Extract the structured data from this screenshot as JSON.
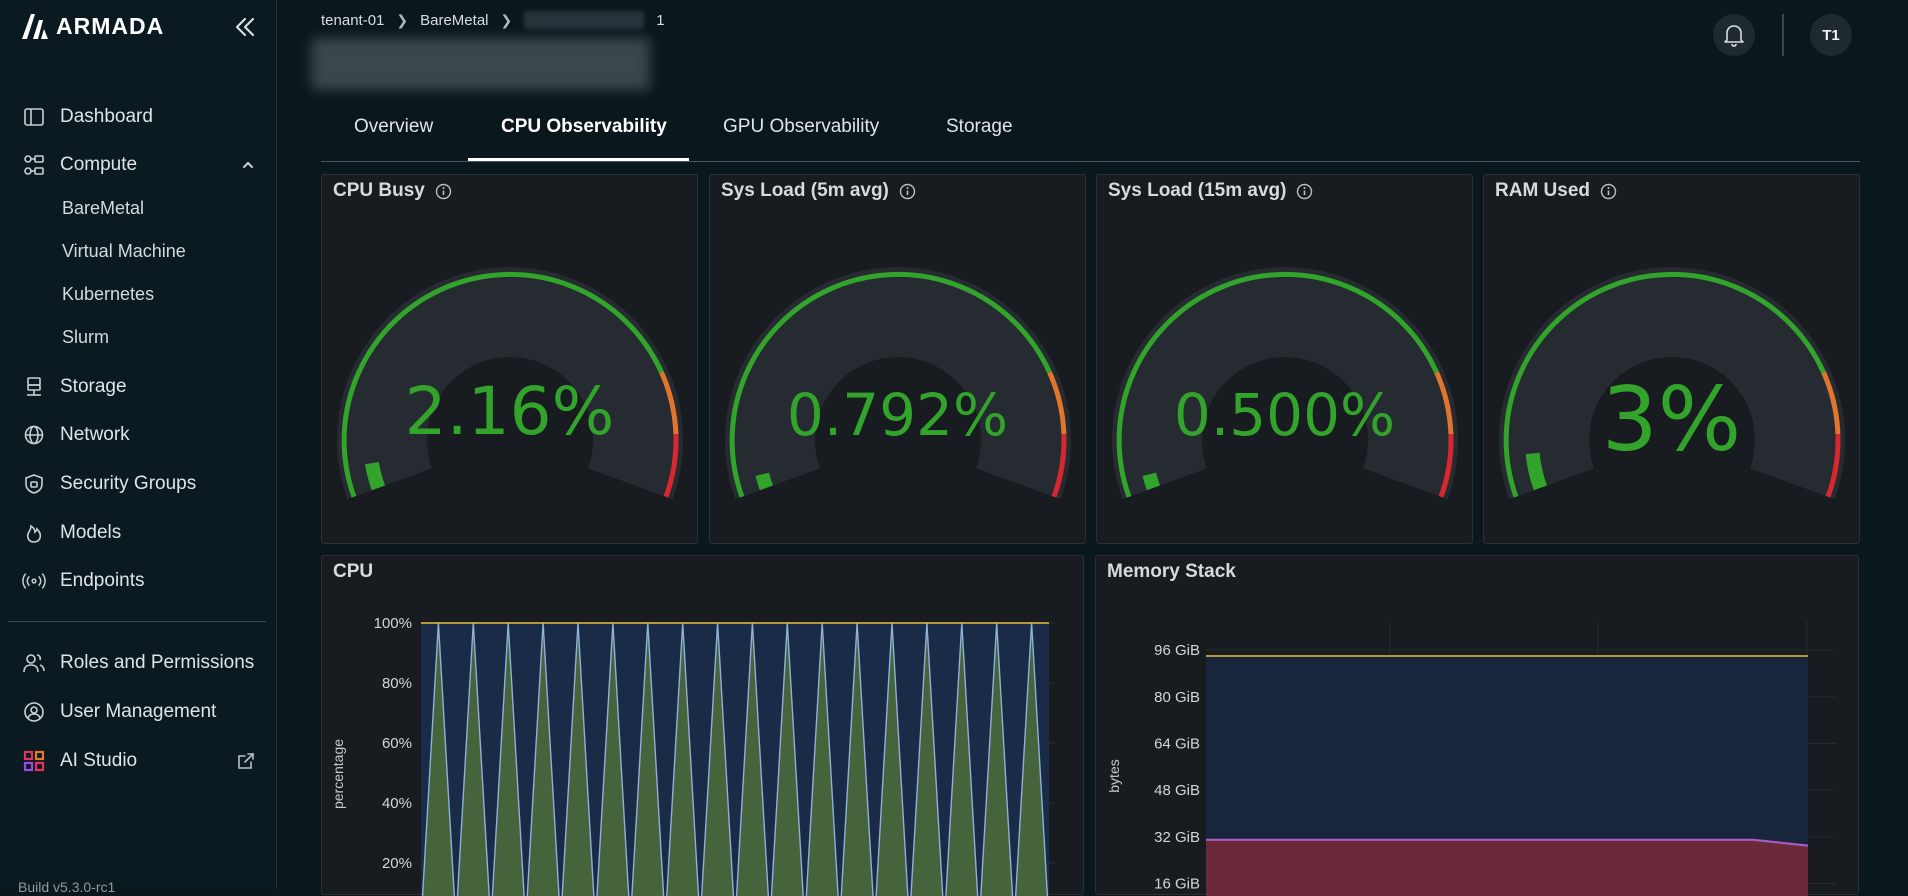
{
  "app": {
    "logo_text": "ARMADA",
    "build_text": "Build v5.3.0-rc1"
  },
  "sidebar": {
    "items": [
      {
        "label": "Dashboard",
        "icon": "dashboard-icon"
      },
      {
        "label": "Compute",
        "icon": "compute-icon"
      },
      {
        "label": "Storage",
        "icon": "storage-icon"
      },
      {
        "label": "Network",
        "icon": "globe-icon"
      },
      {
        "label": "Security Groups",
        "icon": "shield-icon"
      },
      {
        "label": "Models",
        "icon": "flame-icon"
      },
      {
        "label": "Endpoints",
        "icon": "broadcast-icon"
      },
      {
        "label": "Roles and Permissions",
        "icon": "users-icon"
      },
      {
        "label": "User Management",
        "icon": "user-gear-icon"
      },
      {
        "label": "AI Studio",
        "icon": "grid-icon"
      }
    ],
    "compute_sub": [
      "BareMetal",
      "Virtual Machine",
      "Kubernetes",
      "Slurm"
    ]
  },
  "header": {
    "breadcrumb": [
      "tenant-01",
      "BareMetal",
      "1"
    ],
    "avatar_initials": "T1"
  },
  "tabs": [
    "Overview",
    "CPU Observability",
    "GPU Observability",
    "Storage"
  ],
  "active_tab": "CPU Observability",
  "gauges": [
    {
      "title": "CPU Busy",
      "value_text": "2.16%",
      "value": 2.16
    },
    {
      "title": "Sys Load (5m avg)",
      "value_text": "0.792%",
      "value": 0.792
    },
    {
      "title": "Sys Load (15m avg)",
      "value_text": "0.500%",
      "value": 0.5
    },
    {
      "title": "RAM Used",
      "value_text": "3%",
      "value": 3
    }
  ],
  "colors": {
    "green": "#33a42b",
    "orange": "#e0752d",
    "red": "#d6282e",
    "blue": "#5a87c6",
    "yellow": "#e8c23a",
    "purple": "#a65bbd"
  },
  "chart_data": [
    {
      "type": "area",
      "title": "CPU",
      "ylabel": "percentage",
      "yticks": [
        "100%",
        "80%",
        "60%",
        "40%",
        "20%"
      ],
      "ylim": [
        0,
        100
      ],
      "series": [
        {
          "values": [
            100,
            100,
            100,
            100,
            100,
            100,
            100,
            100,
            100,
            100,
            100,
            100,
            100,
            100,
            100,
            100,
            100,
            100,
            100,
            100,
            100,
            100,
            100,
            100,
            100,
            100,
            100,
            100,
            100,
            100,
            100,
            100,
            100,
            100,
            100,
            100,
            100
          ]
        },
        {
          "values": [
            0,
            100,
            0,
            100,
            0,
            100,
            0,
            100,
            0,
            100,
            0,
            100,
            0,
            100,
            0,
            100,
            0,
            100,
            0,
            100,
            0,
            100,
            0,
            100,
            0,
            100,
            0,
            100,
            0,
            100,
            0,
            100,
            0,
            100,
            0,
            100,
            0
          ]
        }
      ]
    },
    {
      "type": "area",
      "title": "Memory Stack",
      "ylabel": "bytes",
      "yticks": [
        "96 GiB",
        "80 GiB",
        "64 GiB",
        "48 GiB",
        "32 GiB",
        "16 GiB"
      ],
      "yticks_values": [
        96,
        80,
        64,
        48,
        32,
        16
      ],
      "ylim": [
        10,
        106
      ],
      "series": [
        {
          "values": [
            94,
            94,
            94,
            94,
            94,
            94,
            94,
            94,
            94,
            94,
            94,
            94
          ]
        },
        {
          "values": [
            31,
            31,
            31,
            31,
            31,
            31,
            31,
            31,
            31,
            31,
            31,
            29
          ]
        }
      ]
    }
  ]
}
